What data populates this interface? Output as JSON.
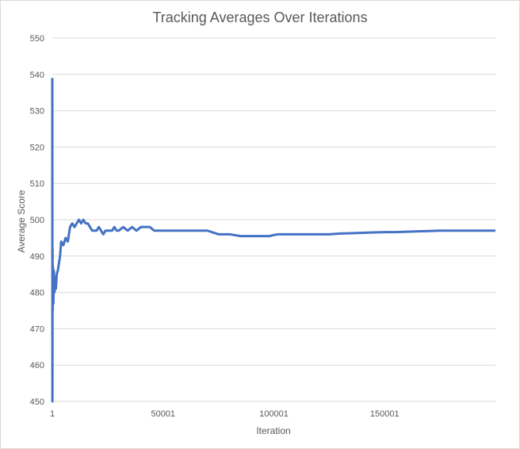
{
  "chart_data": {
    "type": "line",
    "title": "Tracking Averages Over Iterations",
    "xlabel": "Iteration",
    "ylabel": "Average Score",
    "xlim": [
      1,
      200001
    ],
    "ylim": [
      450,
      550
    ],
    "x_ticks": [
      "1",
      "50001",
      "100001",
      "150001"
    ],
    "y_ticks": [
      "450",
      "460",
      "470",
      "480",
      "490",
      "500",
      "510",
      "520",
      "530",
      "540",
      "550"
    ],
    "grid": true,
    "line_color": "#4472c4",
    "series": [
      {
        "x": [
          1,
          50,
          100,
          200,
          300,
          500,
          700,
          1000,
          1300,
          1600,
          2000,
          2500,
          3000,
          3500,
          4000,
          5000,
          6000,
          7000,
          8000,
          9000,
          10000,
          11000,
          12000,
          13000,
          14000,
          15000,
          16000,
          17000,
          18000,
          19000,
          20000,
          21000,
          22000,
          23000,
          24000,
          25000,
          26000,
          27000,
          28000,
          29000,
          30000,
          32000,
          34000,
          36000,
          38000,
          40000,
          42000,
          44000,
          46000,
          48000,
          50000,
          52000,
          55000,
          58000,
          61000,
          65000,
          70000,
          75000,
          80000,
          85000,
          88000,
          90000,
          92000,
          95000,
          98000,
          100000,
          102000,
          105000,
          110000,
          115000,
          120000,
          125000,
          130000,
          135000,
          140000,
          145000,
          150000,
          155000,
          160000,
          165000,
          170000,
          175000,
          180000,
          185000,
          190000,
          195000,
          200001
        ],
        "y": [
          539,
          450,
          492,
          475,
          487,
          477,
          486,
          480,
          484,
          481,
          485,
          486,
          488,
          490,
          494,
          493,
          495,
          494,
          498,
          499,
          498,
          499,
          500,
          499,
          500,
          499,
          499,
          498,
          497,
          497,
          497,
          498,
          497,
          496,
          497,
          497,
          497,
          497,
          498,
          497,
          497,
          498,
          497,
          498,
          497,
          498,
          498,
          498,
          497,
          497,
          497,
          497,
          497,
          497,
          497,
          497,
          497,
          496,
          496,
          495.5,
          495.5,
          495.5,
          495.5,
          495.5,
          495.5,
          495.8,
          496,
          496,
          496,
          496,
          496,
          496,
          496.2,
          496.3,
          496.4,
          496.5,
          496.6,
          496.6,
          496.7,
          496.8,
          496.9,
          497,
          497,
          497,
          497,
          497,
          497
        ]
      }
    ]
  }
}
